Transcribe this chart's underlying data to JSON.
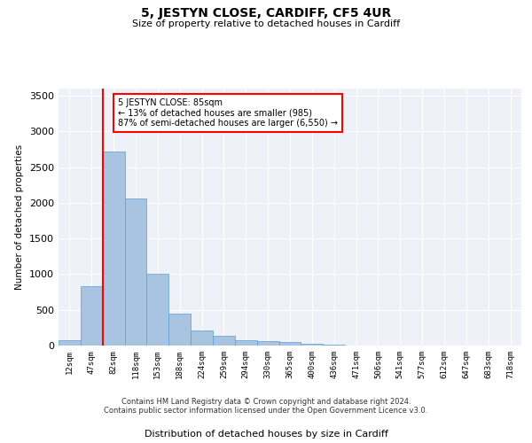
{
  "title": "5, JESTYN CLOSE, CARDIFF, CF5 4UR",
  "subtitle": "Size of property relative to detached houses in Cardiff",
  "xlabel": "Distribution of detached houses by size in Cardiff",
  "ylabel": "Number of detached properties",
  "bin_labels": [
    "12sqm",
    "47sqm",
    "82sqm",
    "118sqm",
    "153sqm",
    "188sqm",
    "224sqm",
    "259sqm",
    "294sqm",
    "330sqm",
    "365sqm",
    "400sqm",
    "436sqm",
    "471sqm",
    "506sqm",
    "541sqm",
    "577sqm",
    "612sqm",
    "647sqm",
    "683sqm",
    "718sqm"
  ],
  "bar_heights": [
    80,
    830,
    2720,
    2060,
    1010,
    450,
    210,
    140,
    80,
    60,
    55,
    30,
    15,
    5,
    3,
    2,
    1,
    1,
    0,
    0,
    0
  ],
  "bar_color": "#a8c4e0",
  "bar_edge_color": "#5a9fd4",
  "vline_color": "red",
  "annotation_text": "5 JESTYN CLOSE: 85sqm\n← 13% of detached houses are smaller (985)\n87% of semi-detached houses are larger (6,550) →",
  "annotation_box_color": "white",
  "annotation_box_edge": "red",
  "ylim": [
    0,
    3600
  ],
  "yticks": [
    0,
    500,
    1000,
    1500,
    2000,
    2500,
    3000,
    3500
  ],
  "bg_color": "#eef2f8",
  "footer1": "Contains HM Land Registry data © Crown copyright and database right 2024.",
  "footer2": "Contains public sector information licensed under the Open Government Licence v3.0."
}
